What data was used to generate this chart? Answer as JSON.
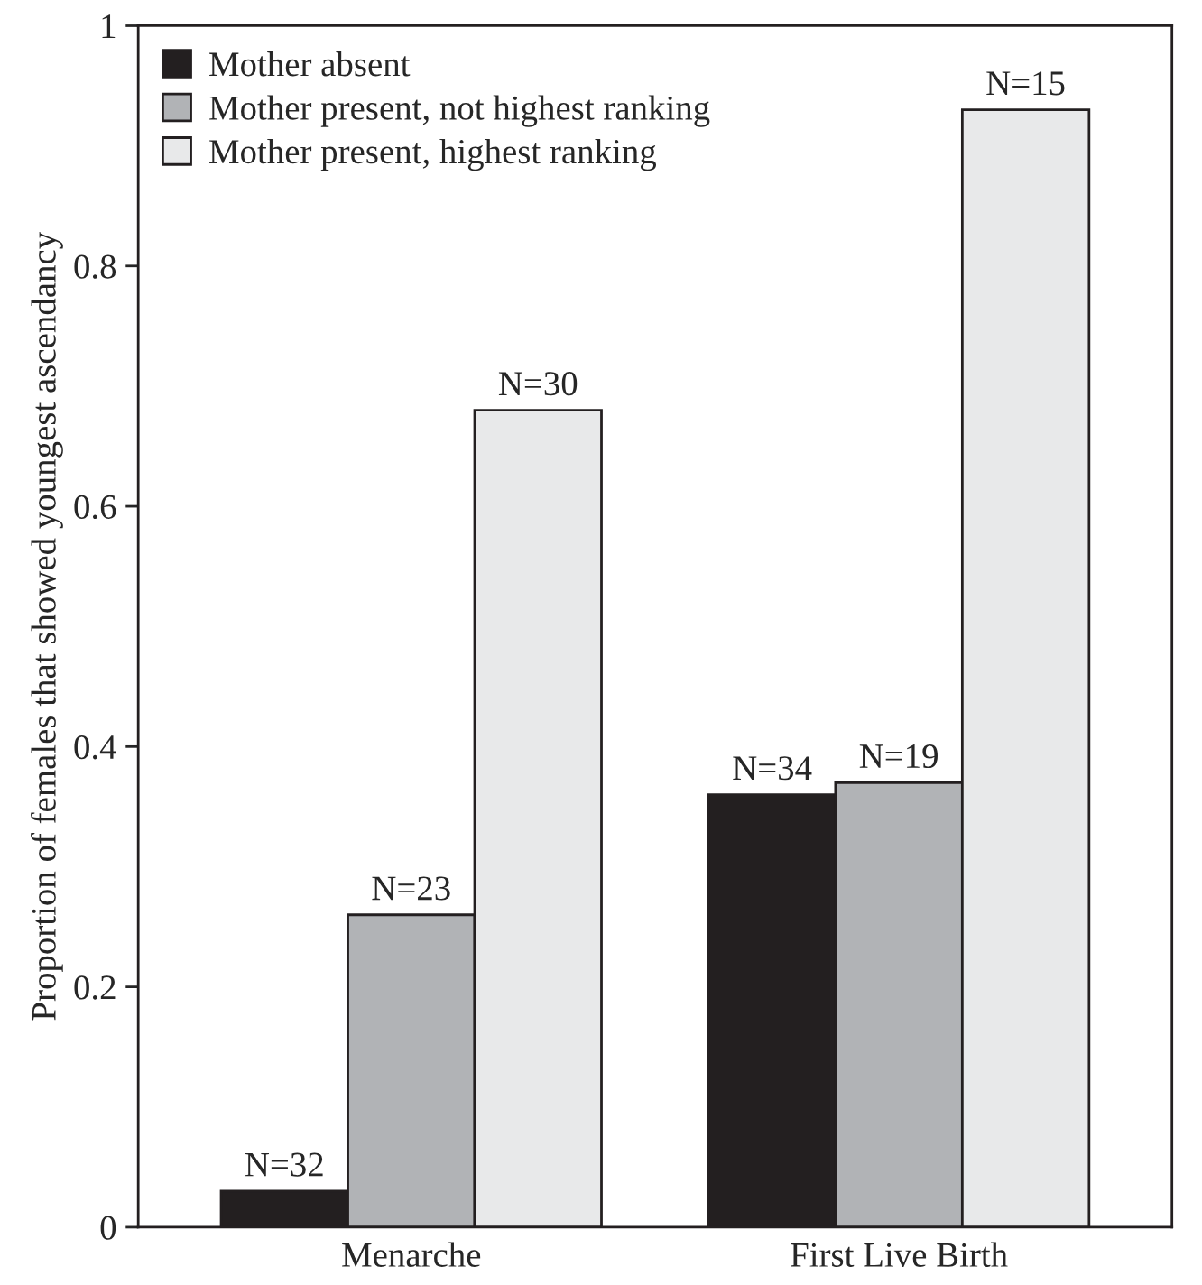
{
  "chart_data": {
    "type": "bar",
    "ylabel": "Proportion of females that showed youngest ascendancy",
    "categories": [
      "Menarche",
      "First Live Birth"
    ],
    "series": [
      {
        "name": "Mother absent",
        "color": "#231f20",
        "values": [
          0.03,
          0.36
        ]
      },
      {
        "name": "Mother present, not highest ranking",
        "color": "#b1b3b6",
        "values": [
          0.26,
          0.37
        ]
      },
      {
        "name": "Mother present, highest ranking",
        "color": "#e8e9ea",
        "values": [
          0.68,
          0.93
        ]
      }
    ],
    "annotations": [
      "N=32",
      "N=34",
      "N=23",
      "N=19",
      "N=30",
      "N=15"
    ],
    "ylim": [
      0,
      1
    ],
    "yticks": [
      0,
      0.2,
      0.4,
      0.6,
      0.8,
      1
    ],
    "grid": false,
    "legend": "top left"
  }
}
